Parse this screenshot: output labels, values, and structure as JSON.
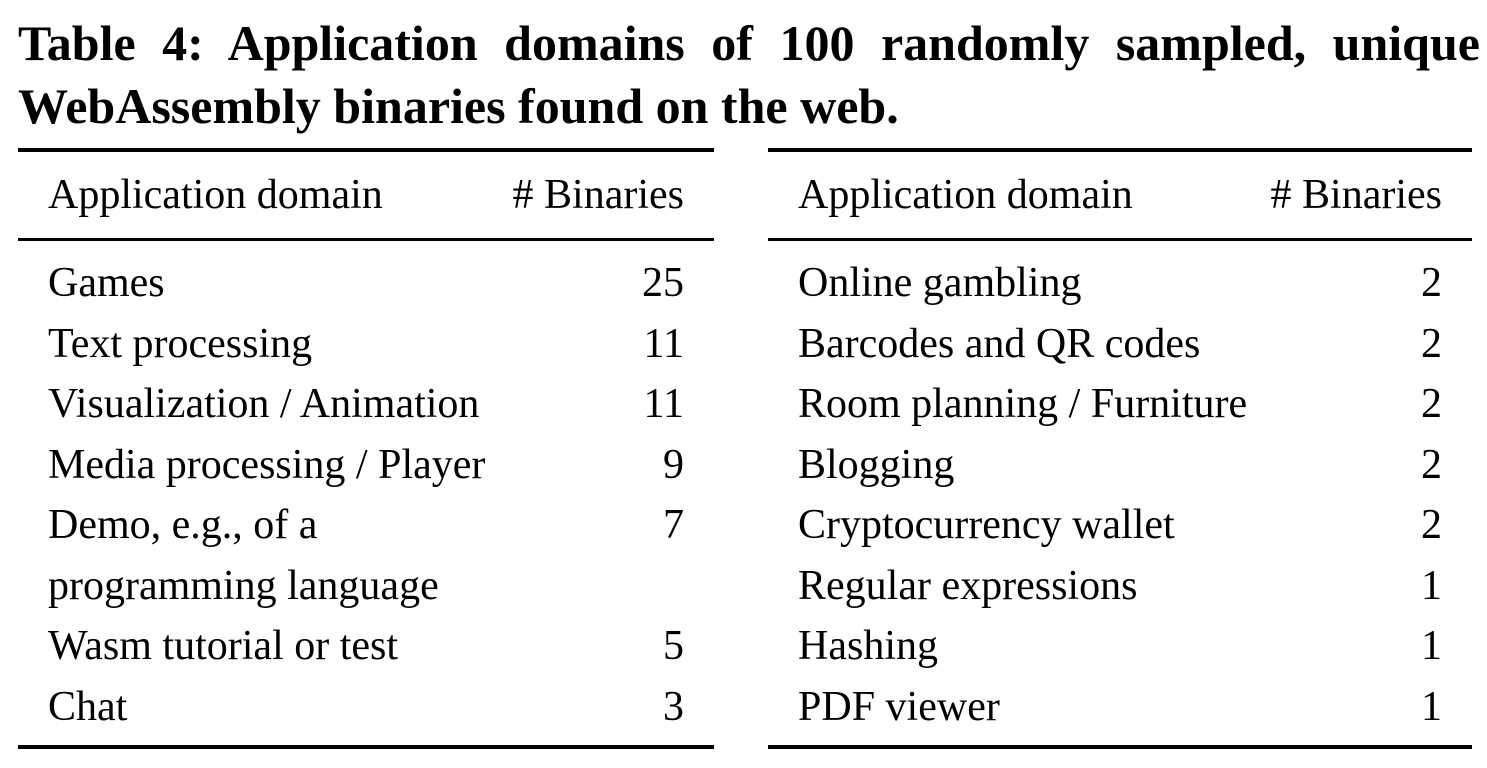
{
  "caption": "Table 4: Application domains of 100 randomly sampled, unique WebAssembly binaries found on the web.",
  "table": {
    "headers": {
      "domain": "Application domain",
      "binaries": "# Binaries"
    },
    "left_rows": [
      {
        "domain": "Games",
        "binaries": "25"
      },
      {
        "domain": "Text processing",
        "binaries": "11"
      },
      {
        "domain": "Visualization / Animation",
        "binaries": "11"
      },
      {
        "domain": "Media processing / Player",
        "binaries": "9"
      },
      {
        "domain": "Demo, e.g., of a programming language",
        "binaries": "7"
      },
      {
        "domain": "Wasm tutorial or test",
        "binaries": "5"
      },
      {
        "domain": "Chat",
        "binaries": "3"
      }
    ],
    "right_rows": [
      {
        "domain": "Online gambling",
        "binaries": "2"
      },
      {
        "domain": "Barcodes and QR codes",
        "binaries": "2"
      },
      {
        "domain": "Room planning / Furniture",
        "binaries": "2"
      },
      {
        "domain": "Blogging",
        "binaries": "2"
      },
      {
        "domain": "Cryptocurrency wallet",
        "binaries": "2"
      },
      {
        "domain": "Regular expressions",
        "binaries": "1"
      },
      {
        "domain": "Hashing",
        "binaries": "1"
      },
      {
        "domain": "PDF viewer",
        "binaries": "1"
      }
    ]
  }
}
